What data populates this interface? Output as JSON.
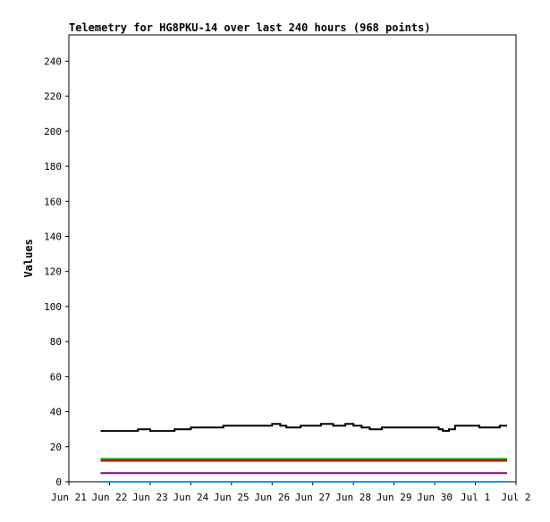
{
  "chart_data": {
    "type": "line",
    "title": "Telemetry for HG8PKU-14 over last 240 hours (968 points)",
    "xlabel": "",
    "ylabel": "Values",
    "ylim": [
      0,
      255
    ],
    "yticks": [
      0,
      20,
      40,
      60,
      80,
      100,
      120,
      140,
      160,
      180,
      200,
      220,
      240
    ],
    "xlim": [
      0,
      11
    ],
    "xticks": [
      {
        "x": 0,
        "label": "Jun 21"
      },
      {
        "x": 1,
        "label": "Jun 22"
      },
      {
        "x": 2,
        "label": "Jun 23"
      },
      {
        "x": 3,
        "label": "Jun 24"
      },
      {
        "x": 4,
        "label": "Jun 25"
      },
      {
        "x": 5,
        "label": "Jun 26"
      },
      {
        "x": 6,
        "label": "Jun 27"
      },
      {
        "x": 7,
        "label": "Jun 28"
      },
      {
        "x": 8,
        "label": "Jun 29"
      },
      {
        "x": 9,
        "label": "Jun 30"
      },
      {
        "x": 10,
        "label": "Jul 1"
      },
      {
        "x": 11,
        "label": "Jul 2"
      }
    ],
    "grid": false,
    "legend": "none",
    "series": [
      {
        "color": "#000000",
        "x": [
          0.78,
          0.9,
          1.2,
          1.5,
          1.7,
          1.9,
          2.0,
          2.3,
          2.6,
          2.8,
          3.0,
          3.3,
          3.6,
          3.8,
          4.1,
          4.4,
          4.7,
          5.0,
          5.2,
          5.35,
          5.5,
          5.7,
          5.9,
          6.2,
          6.5,
          6.8,
          7.0,
          7.2,
          7.4,
          7.7,
          8.0,
          8.3,
          8.6,
          8.9,
          9.1,
          9.2,
          9.35,
          9.5,
          9.8,
          10.1,
          10.4,
          10.6,
          10.78
        ],
        "values": [
          29,
          29,
          29,
          29,
          30,
          30,
          29,
          29,
          30,
          30,
          31,
          31,
          31,
          32,
          32,
          32,
          32,
          33,
          32,
          31,
          31,
          32,
          32,
          33,
          32,
          33,
          32,
          31,
          30,
          31,
          31,
          31,
          31,
          31,
          30,
          29,
          30,
          32,
          32,
          31,
          31,
          32,
          32
        ]
      },
      {
        "color": "#00a000",
        "x": [
          0.78,
          10.78
        ],
        "values": [
          13,
          13
        ]
      },
      {
        "color": "#d00000",
        "x": [
          0.78,
          10.78
        ],
        "values": [
          12,
          12
        ]
      },
      {
        "color": "#800080",
        "x": [
          0.78,
          10.78
        ],
        "values": [
          5,
          5
        ]
      },
      {
        "color": "#1e90ff",
        "x": [
          0.78,
          10.78
        ],
        "values": [
          0,
          0
        ]
      }
    ]
  }
}
